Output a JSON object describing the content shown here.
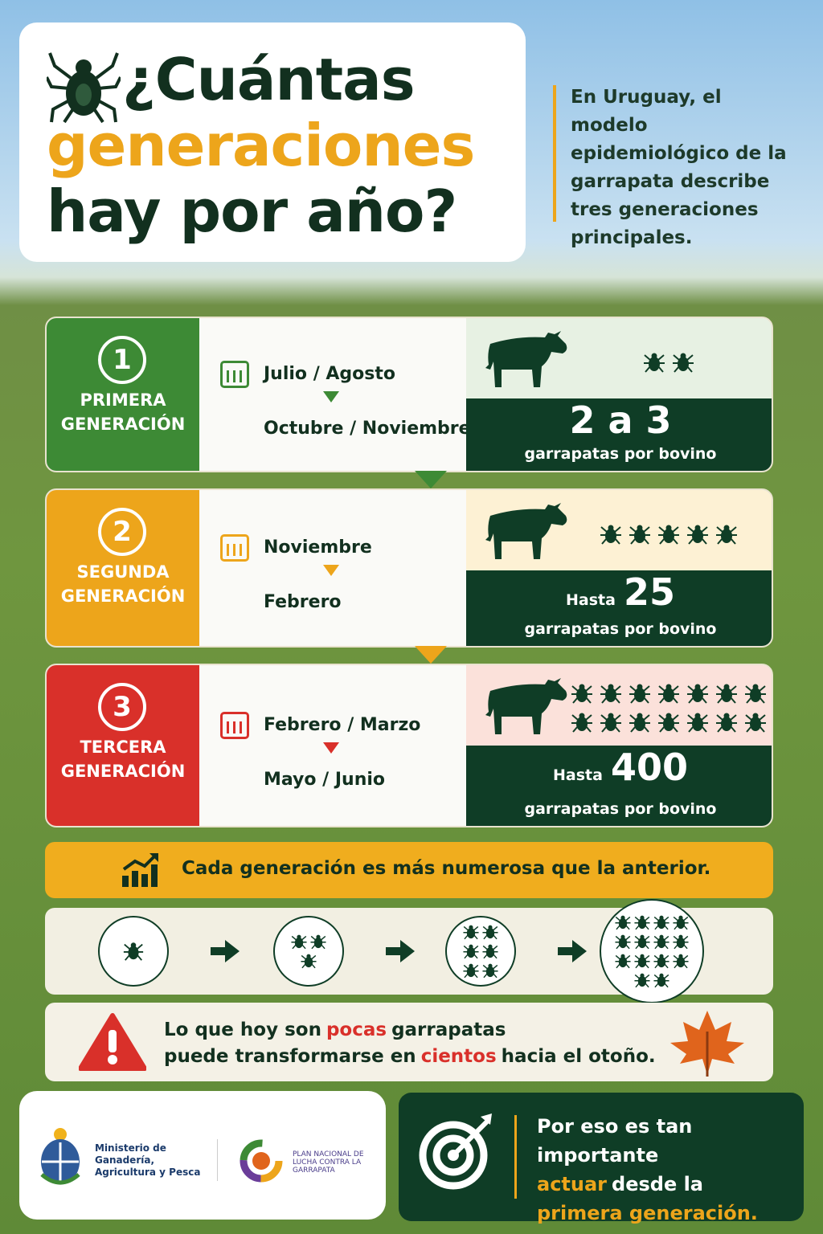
{
  "header": {
    "title_line1": "¿Cuántas",
    "title_line2": "generaciones",
    "title_line3": "hay por año?",
    "intro": "En Uruguay, el modelo epidemiológico de la garrapata describe tres generaciones principales."
  },
  "generations": [
    {
      "number": 1,
      "name_line1": "PRIMERA",
      "name_line2": "GENERACIÓN",
      "start": "Julio / Agosto",
      "end": "Octubre / Noviembre",
      "count": "2 a 3",
      "unit": "garrapatas por bovino"
    },
    {
      "number": 2,
      "name_line1": "SEGUNDA",
      "name_line2": "GENERACIÓN",
      "start": "Noviembre",
      "end": "Febrero",
      "prefix": "Hasta",
      "count": 25,
      "unit": "garrapatas por bovino"
    },
    {
      "number": 3,
      "name_line1": "TERCERA",
      "name_line2": "GENERACIÓN",
      "start": "Febrero / Marzo",
      "end": "Mayo / Junio",
      "prefix": "Hasta",
      "count": 400,
      "unit": "garrapatas por bovino"
    }
  ],
  "trend": "Cada generación es más numerosa que la anterior.",
  "warning": {
    "line1_before": "Lo que hoy son",
    "line1_highlight": "pocas",
    "line1_after": "garrapatas",
    "line2_before": "puede transformarse en",
    "line2_highlight": "cientos",
    "line2_after": "hacia el otoño."
  },
  "footer": {
    "ministry": "Ministerio de Ganadería, Agricultura y Pesca",
    "plan": "PLAN NACIONAL DE LUCHA CONTRA LA GARRAPATA",
    "cta_line1": "Por eso es tan importante",
    "cta_highlight1": "actuar",
    "cta_line2_after": "desde la",
    "cta_highlight2": "primera generación."
  }
}
